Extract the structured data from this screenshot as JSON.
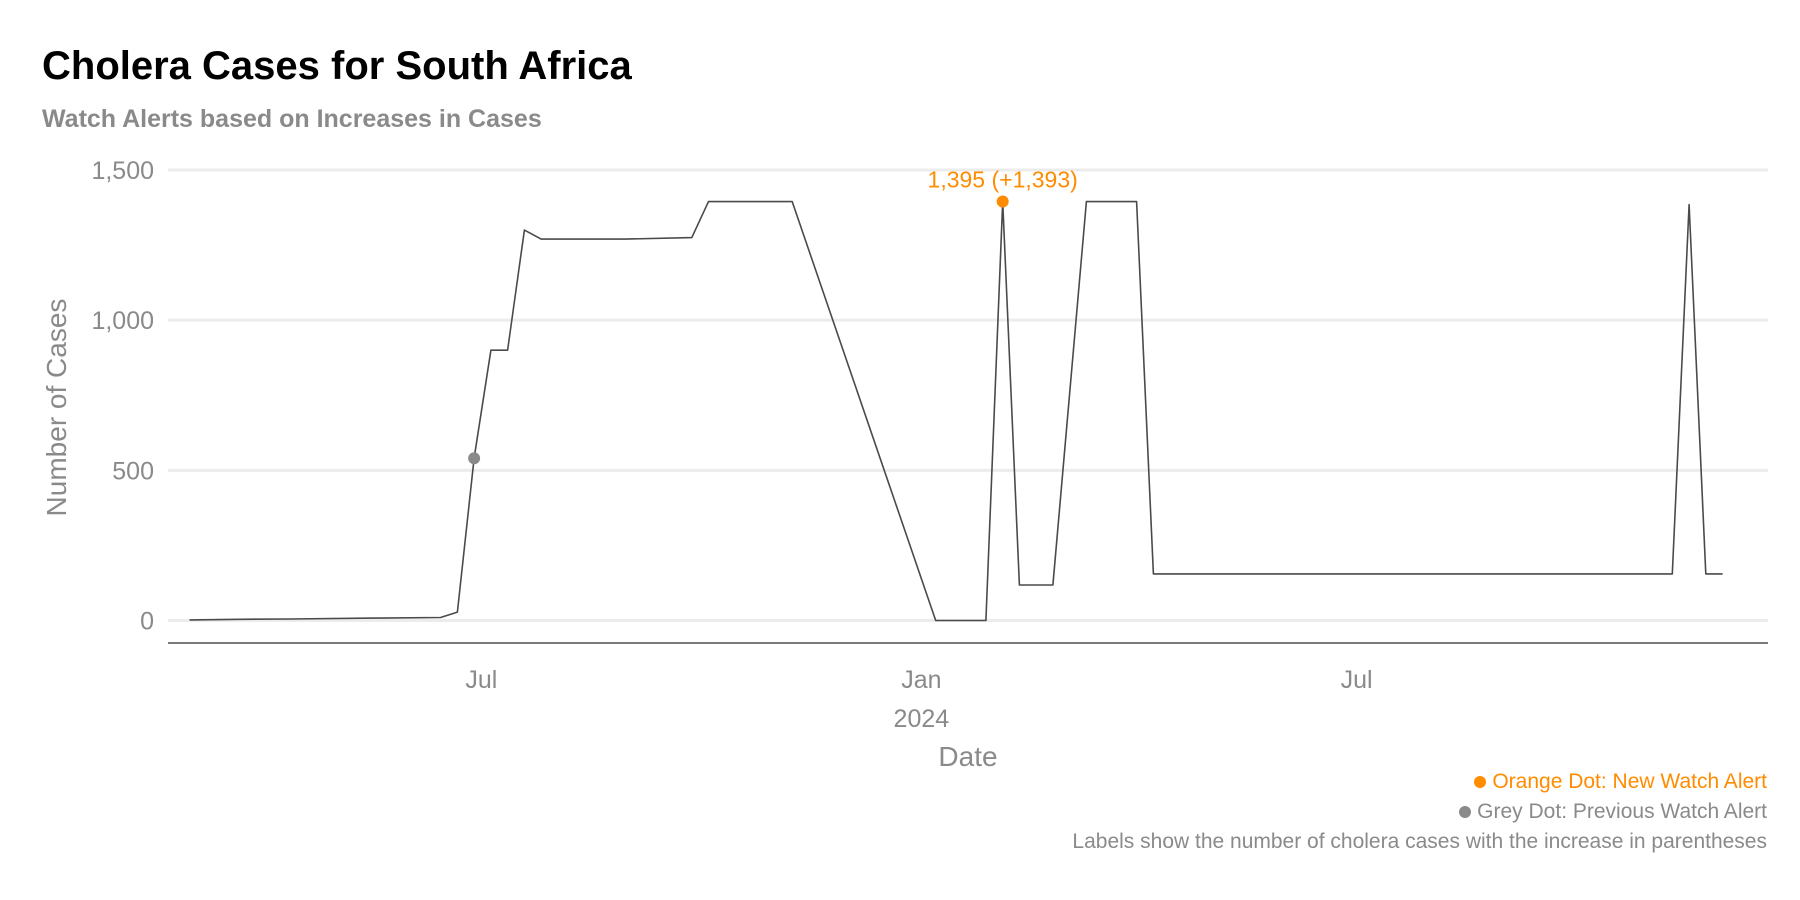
{
  "title": "Cholera Cases for South Africa",
  "subtitle": "Watch Alerts based on Increases in Cases",
  "captions": {
    "new_alert": "Orange Dot: New Watch Alert",
    "previous_alert": "Grey Dot: Previous Watch Alert",
    "labels_note": "Labels show the number of cholera cases with the increase in parentheses"
  },
  "colors": {
    "line": "#4a4a4a",
    "new_alert": "#ff8c00",
    "previous_alert": "#8a8a8a",
    "grid": "#ececec",
    "axis_text": "#8a8a8a"
  },
  "chart_data": {
    "type": "line",
    "xlabel": "Date",
    "ylabel": "Number of Cases",
    "xlim": [
      "2023-02-20",
      "2024-12-20"
    ],
    "ylim": [
      -75,
      1560
    ],
    "y_ticks": [
      0,
      500,
      1000,
      1500
    ],
    "y_tick_labels": [
      "0",
      "500",
      "1,000",
      "1,500"
    ],
    "x_ticks": [
      {
        "date": "2023-07-01",
        "label": "Jul",
        "sublabel": ""
      },
      {
        "date": "2024-01-01",
        "label": "Jan",
        "sublabel": "2024"
      },
      {
        "date": "2024-07-01",
        "label": "Jul",
        "sublabel": ""
      }
    ],
    "grid": "horizontal",
    "legend": "none",
    "series": [
      {
        "points": [
          [
            "2023-03-01",
            2
          ],
          [
            "2023-03-22",
            4
          ],
          [
            "2023-04-12",
            5
          ],
          [
            "2023-05-17",
            8
          ],
          [
            "2023-06-14",
            10
          ],
          [
            "2023-06-21",
            28
          ],
          [
            "2023-06-28",
            540
          ],
          [
            "2023-07-05",
            900
          ],
          [
            "2023-07-12",
            900
          ],
          [
            "2023-07-19",
            1300
          ],
          [
            "2023-07-26",
            1270
          ],
          [
            "2023-08-30",
            1270
          ],
          [
            "2023-09-27",
            1275
          ],
          [
            "2023-10-04",
            1395
          ],
          [
            "2023-11-08",
            1395
          ],
          [
            "2024-01-07",
            0
          ],
          [
            "2024-01-28",
            0
          ],
          [
            "2024-02-04",
            1395
          ],
          [
            "2024-02-11",
            118
          ],
          [
            "2024-02-25",
            118
          ],
          [
            "2024-03-10",
            1395
          ],
          [
            "2024-03-31",
            1395
          ],
          [
            "2024-04-07",
            155
          ],
          [
            "2024-11-10",
            155
          ],
          [
            "2024-11-17",
            1385
          ],
          [
            "2024-11-24",
            155
          ],
          [
            "2024-12-01",
            155
          ]
        ]
      }
    ],
    "alerts": [
      {
        "date": "2023-06-28",
        "value": 540,
        "kind": "previous",
        "label": ""
      },
      {
        "date": "2024-02-04",
        "value": 1395,
        "kind": "new",
        "label": "1,395 (+1,393)"
      }
    ]
  }
}
